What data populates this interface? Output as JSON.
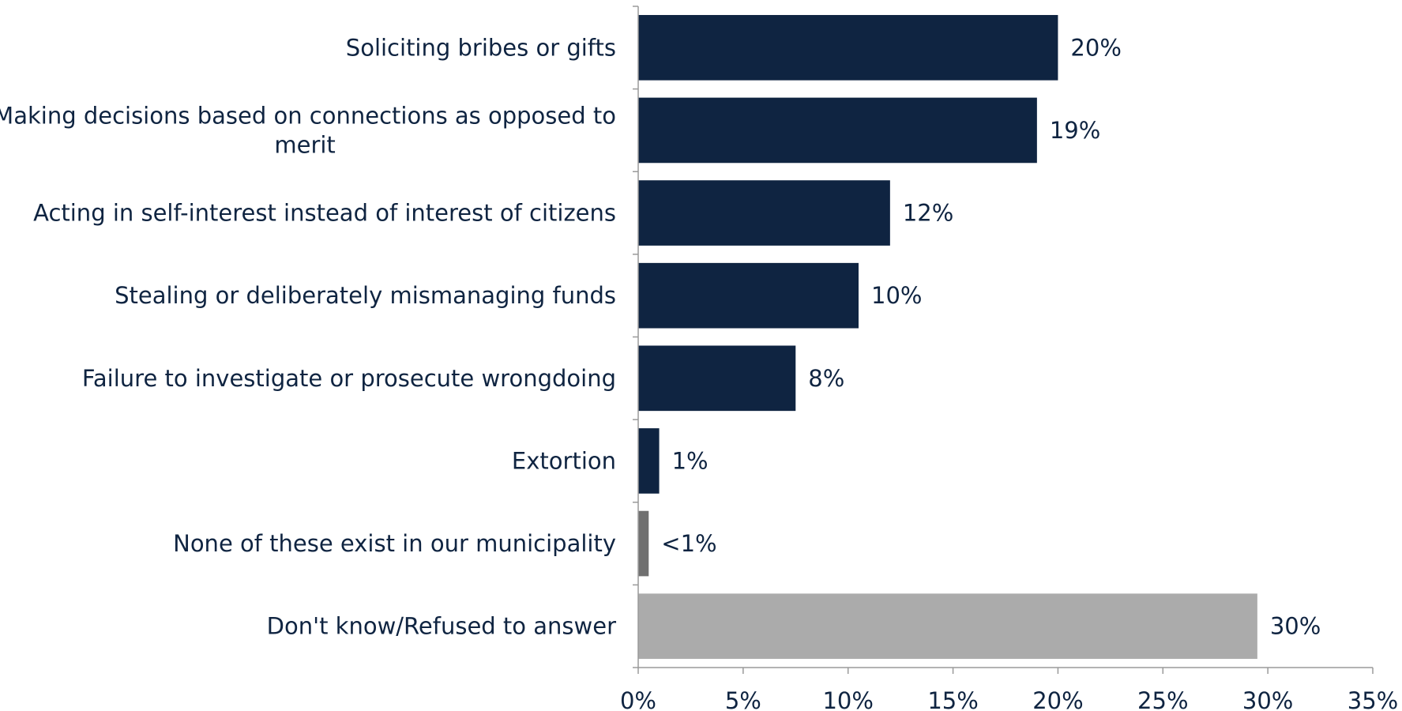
{
  "chart_data": {
    "type": "bar",
    "orientation": "horizontal",
    "title": "",
    "xlabel": "",
    "ylabel": "",
    "xlim": [
      0,
      35
    ],
    "x_ticks": [
      0,
      5,
      10,
      15,
      20,
      25,
      30,
      35
    ],
    "x_tick_labels": [
      "0%",
      "5%",
      "10%",
      "15%",
      "20%",
      "25%",
      "30%",
      "35%"
    ],
    "grid": false,
    "legend": "none",
    "categories": [
      [
        "Soliciting bribes or gifts"
      ],
      [
        "Making decisions based on connections as opposed to",
        "merit"
      ],
      [
        "Acting in self-interest instead of interest of citizens"
      ],
      [
        "Stealing or deliberately mismanaging funds"
      ],
      [
        "Failure to investigate or prosecute wrongdoing"
      ],
      [
        "Extortion"
      ],
      [
        "None of these exist in our municipality"
      ],
      [
        "Don't know/Refused to answer"
      ]
    ],
    "values": [
      20,
      19,
      12,
      10.5,
      7.5,
      1,
      0.5,
      29.5
    ],
    "value_labels": [
      "20%",
      "19%",
      "12%",
      "10%",
      "8%",
      "1%",
      "<1%",
      "30%"
    ],
    "bar_colors": [
      "#0f2441",
      "#0f2441",
      "#0f2441",
      "#0f2441",
      "#0f2441",
      "#0f2441",
      "#707070",
      "#ababab"
    ]
  }
}
